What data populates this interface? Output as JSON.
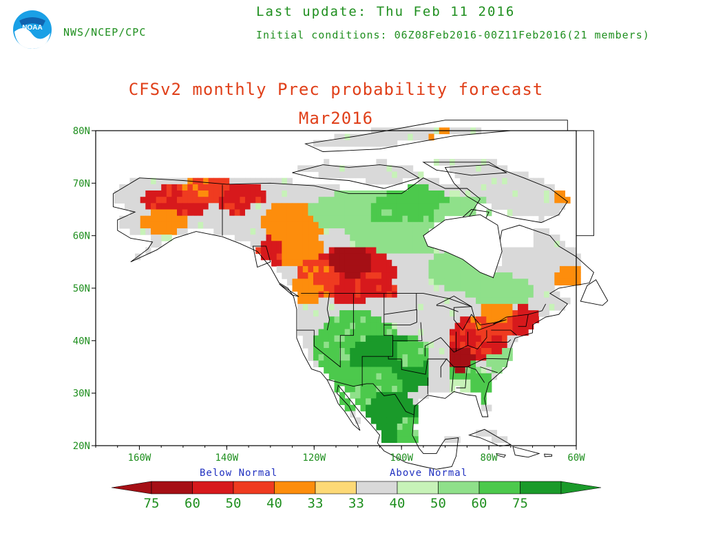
{
  "header": {
    "agency": "NWS/NCEP/CPC",
    "last_update": "Last update: Thu Feb 11 2016",
    "initial_conditions": "Initial conditions: 06Z08Feb2016-00Z11Feb2016(21 members)",
    "logo_text": "NOAA"
  },
  "title": {
    "line1": "CFSv2 monthly Prec probability forecast",
    "line2": "Mar2016"
  },
  "map": {
    "lat_labels": [
      "80N",
      "70N",
      "60N",
      "50N",
      "40N",
      "30N",
      "20N"
    ],
    "lon_labels": [
      "160W",
      "140W",
      "120W",
      "100W",
      "80W",
      "60W"
    ],
    "colors": {
      "below_75": "#a50f15",
      "below_60": "#d7191c",
      "below_50": "#ef3b20",
      "below_40": "#fd8d0c",
      "below_33": "#fdd976",
      "normal": "#d9d9d9",
      "above_40": "#c7f2b8",
      "above_50": "#8fe08a",
      "above_60": "#4cc94c",
      "above_75": "#1a9a2a",
      "ocean": "#ffffff"
    }
  },
  "colorbar": {
    "below_label": "Below Normal",
    "above_label": "Above Normal",
    "tick_labels": [
      "75",
      "60",
      "50",
      "40",
      "33",
      "33",
      "40",
      "50",
      "60",
      "75"
    ],
    "colors": [
      "#a50f15",
      "#d7191c",
      "#ef3b20",
      "#fd8d0c",
      "#fdd976",
      "#d9d9d9",
      "#c7f2b8",
      "#8fe08a",
      "#4cc94c",
      "#1a9a2a"
    ]
  }
}
